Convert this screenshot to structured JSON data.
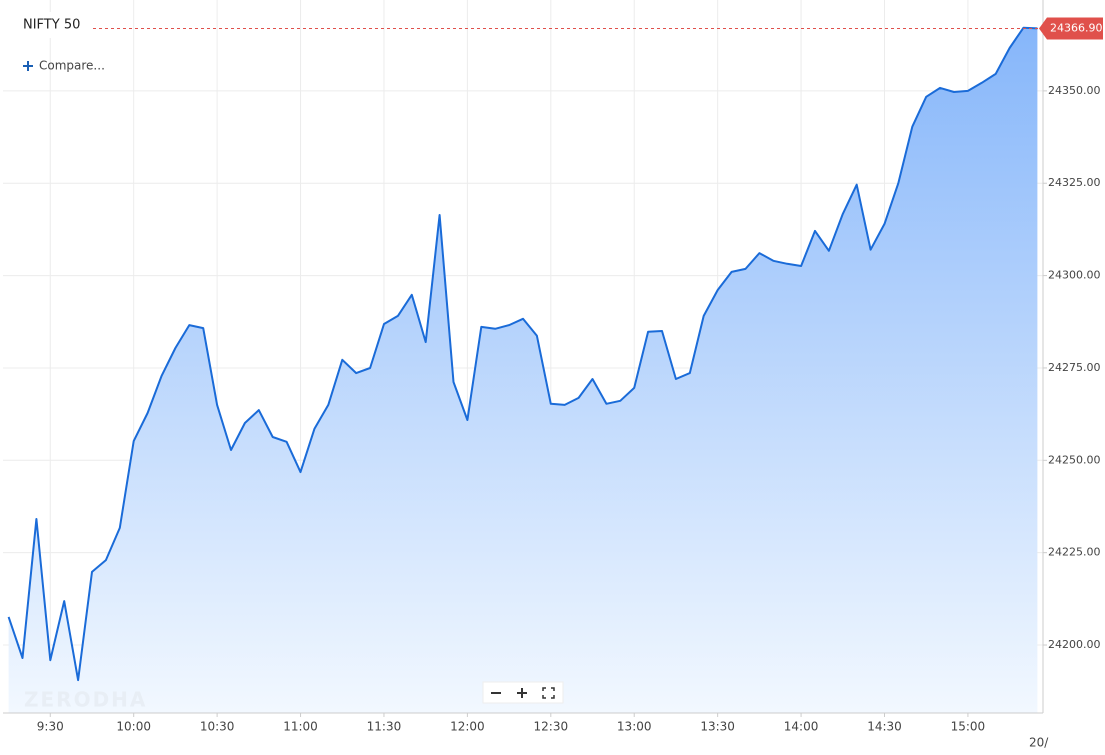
{
  "chart_data": {
    "type": "area",
    "title": "NIFTY 50",
    "compare": "Compare...",
    "watermark": "ZERODHA",
    "date_label": "20/",
    "x": [
      "9:15",
      "9:20",
      "9:25",
      "9:30",
      "9:35",
      "9:40",
      "9:45",
      "9:50",
      "9:55",
      "10:00",
      "10:05",
      "10:10",
      "10:15",
      "10:20",
      "10:25",
      "10:30",
      "10:35",
      "10:40",
      "10:45",
      "10:50",
      "10:55",
      "11:00",
      "11:05",
      "11:10",
      "11:15",
      "11:20",
      "11:25",
      "11:30",
      "11:35",
      "11:40",
      "11:45",
      "11:50",
      "11:55",
      "12:00",
      "12:05",
      "12:10",
      "12:15",
      "12:20",
      "12:25",
      "12:30",
      "12:35",
      "12:40",
      "12:45",
      "12:50",
      "12:55",
      "13:00",
      "13:05",
      "13:10",
      "13:15",
      "13:20",
      "13:25",
      "13:30",
      "13:35",
      "13:40",
      "13:45",
      "13:50",
      "13:55",
      "14:00",
      "14:05",
      "14:10",
      "14:15",
      "14:20",
      "14:25",
      "14:30",
      "14:35",
      "14:40",
      "14:45",
      "14:50",
      "14:55",
      "15:00",
      "15:05",
      "15:10",
      "15:15",
      "15:20",
      "15:25"
    ],
    "series": [
      {
        "name": "NIFTY 50",
        "color": "#1a6bd8",
        "values": [
          24207.6,
          24196.5,
          24234.1,
          24195.9,
          24211.9,
          24190.5,
          24219.8,
          24223.0,
          24231.7,
          24255.2,
          24262.8,
          24272.8,
          24280.4,
          24286.6,
          24285.8,
          24265.0,
          24252.8,
          24260.1,
          24263.6,
          24256.3,
          24255.0,
          24246.8,
          24258.5,
          24265.0,
          24277.2,
          24273.6,
          24275.0,
          24286.9,
          24289.1,
          24294.8,
          24282.0,
          24316.4,
          24271.2,
          24260.9,
          24286.1,
          24285.6,
          24286.6,
          24288.3,
          24283.7,
          24265.3,
          24265.0,
          24266.9,
          24272.0,
          24265.3,
          24266.1,
          24269.6,
          24284.8,
          24285.0,
          24272.0,
          24273.6,
          24289.1,
          24296.1,
          24301.0,
          24301.8,
          24306.1,
          24304.0,
          24303.2,
          24302.6,
          24312.1,
          24306.7,
          24316.7,
          24324.6,
          24307.0,
          24314.0,
          24325.1,
          24340.3,
          24348.4,
          24350.8,
          24349.7,
          24350.0,
          24352.2,
          24354.6,
          24361.6,
          24367.1,
          24366.9
        ]
      }
    ],
    "last_price": {
      "value": 24366.9,
      "label": "24366.90"
    },
    "last_price_color": "#e0504b",
    "xlim": [
      "9:13",
      "15:27"
    ],
    "xticks": [
      "9:30",
      "10:00",
      "10:30",
      "11:00",
      "11:30",
      "12:00",
      "12:30",
      "13:00",
      "13:30",
      "14:00",
      "14:30",
      "15:00"
    ],
    "ylim": [
      24181.6,
      24374.6
    ],
    "yticks": [
      {
        "value": 24200,
        "label": "24200.00"
      },
      {
        "value": 24225,
        "label": "24225.00"
      },
      {
        "value": 24250,
        "label": "24250.00"
      },
      {
        "value": 24275,
        "label": "24275.00"
      },
      {
        "value": 24300,
        "label": "24300.00"
      },
      {
        "value": 24325,
        "label": "24325.00"
      },
      {
        "value": 24350,
        "label": "24350.00"
      }
    ],
    "grid": true
  }
}
